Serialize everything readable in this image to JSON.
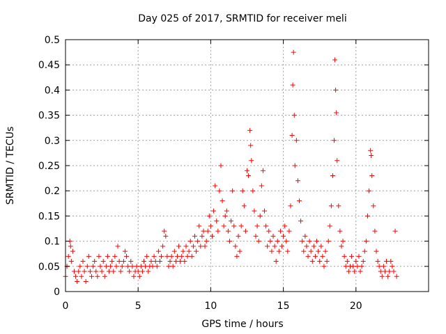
{
  "chart_data": {
    "type": "scatter",
    "title": "Day 025 of 2017, SRMTID for receiver meli",
    "xlabel": "GPS time / hours",
    "ylabel": "SRMTID / TECUs",
    "xlim": [
      0,
      25
    ],
    "ylim": [
      0,
      0.5
    ],
    "xticks": [
      0,
      5,
      10,
      15,
      20
    ],
    "xtick_labels": [
      "0",
      "5",
      "10",
      "15",
      "20"
    ],
    "yticks": [
      0,
      0.05,
      0.1,
      0.15,
      0.2,
      0.25,
      0.3,
      0.35,
      0.4,
      0.45,
      0.5
    ],
    "ytick_labels": [
      "0",
      "0.05",
      "0.1",
      "0.15",
      "0.2",
      "0.25",
      "0.3",
      "0.35",
      "0.4",
      "0.45",
      "0.5"
    ],
    "grid": true,
    "marker": "plus",
    "color": "#ff0000",
    "series": [
      {
        "name": "SRMTID",
        "points": [
          [
            0.0,
            0.03
          ],
          [
            0.1,
            0.05
          ],
          [
            0.2,
            0.07
          ],
          [
            0.3,
            0.1
          ],
          [
            0.35,
            0.09
          ],
          [
            0.4,
            0.06
          ],
          [
            0.5,
            0.08
          ],
          [
            0.6,
            0.04
          ],
          [
            0.7,
            0.03
          ],
          [
            0.8,
            0.02
          ],
          [
            0.9,
            0.04
          ],
          [
            1.0,
            0.05
          ],
          [
            1.1,
            0.03
          ],
          [
            1.2,
            0.06
          ],
          [
            1.3,
            0.04
          ],
          [
            1.4,
            0.02
          ],
          [
            1.5,
            0.05
          ],
          [
            1.6,
            0.07
          ],
          [
            1.7,
            0.04
          ],
          [
            1.8,
            0.03
          ],
          [
            1.9,
            0.05
          ],
          [
            2.0,
            0.06
          ],
          [
            2.1,
            0.04
          ],
          [
            2.2,
            0.03
          ],
          [
            2.3,
            0.07
          ],
          [
            2.4,
            0.05
          ],
          [
            2.5,
            0.04
          ],
          [
            2.6,
            0.06
          ],
          [
            2.7,
            0.03
          ],
          [
            2.8,
            0.05
          ],
          [
            2.9,
            0.07
          ],
          [
            3.0,
            0.04
          ],
          [
            3.1,
            0.05
          ],
          [
            3.2,
            0.06
          ],
          [
            3.3,
            0.04
          ],
          [
            3.4,
            0.07
          ],
          [
            3.5,
            0.05
          ],
          [
            3.6,
            0.09
          ],
          [
            3.7,
            0.06
          ],
          [
            3.8,
            0.04
          ],
          [
            3.9,
            0.05
          ],
          [
            4.0,
            0.06
          ],
          [
            4.1,
            0.08
          ],
          [
            4.2,
            0.07
          ],
          [
            4.3,
            0.05
          ],
          [
            4.4,
            0.04
          ],
          [
            4.5,
            0.06
          ],
          [
            4.6,
            0.05
          ],
          [
            4.7,
            0.03
          ],
          [
            4.8,
            0.04
          ],
          [
            4.9,
            0.05
          ],
          [
            5.0,
            0.04
          ],
          [
            5.1,
            0.03
          ],
          [
            5.2,
            0.05
          ],
          [
            5.3,
            0.04
          ],
          [
            5.4,
            0.06
          ],
          [
            5.5,
            0.05
          ],
          [
            5.6,
            0.07
          ],
          [
            5.7,
            0.04
          ],
          [
            5.8,
            0.05
          ],
          [
            5.9,
            0.06
          ],
          [
            6.0,
            0.05
          ],
          [
            6.1,
            0.07
          ],
          [
            6.2,
            0.06
          ],
          [
            6.3,
            0.05
          ],
          [
            6.4,
            0.08
          ],
          [
            6.5,
            0.06
          ],
          [
            6.6,
            0.07
          ],
          [
            6.7,
            0.09
          ],
          [
            6.8,
            0.12
          ],
          [
            6.9,
            0.11
          ],
          [
            7.0,
            0.07
          ],
          [
            7.1,
            0.05
          ],
          [
            7.2,
            0.06
          ],
          [
            7.3,
            0.07
          ],
          [
            7.4,
            0.05
          ],
          [
            7.5,
            0.08
          ],
          [
            7.6,
            0.06
          ],
          [
            7.7,
            0.07
          ],
          [
            7.8,
            0.09
          ],
          [
            7.9,
            0.06
          ],
          [
            8.0,
            0.07
          ],
          [
            8.1,
            0.08
          ],
          [
            8.2,
            0.06
          ],
          [
            8.3,
            0.09
          ],
          [
            8.4,
            0.07
          ],
          [
            8.5,
            0.08
          ],
          [
            8.6,
            0.1
          ],
          [
            8.7,
            0.07
          ],
          [
            8.8,
            0.09
          ],
          [
            8.9,
            0.11
          ],
          [
            9.0,
            0.08
          ],
          [
            9.1,
            0.1
          ],
          [
            9.2,
            0.13
          ],
          [
            9.3,
            0.09
          ],
          [
            9.4,
            0.11
          ],
          [
            9.5,
            0.12
          ],
          [
            9.6,
            0.09
          ],
          [
            9.7,
            0.1
          ],
          [
            9.8,
            0.12
          ],
          [
            9.9,
            0.15
          ],
          [
            10.0,
            0.13
          ],
          [
            10.1,
            0.11
          ],
          [
            10.2,
            0.16
          ],
          [
            10.3,
            0.21
          ],
          [
            10.4,
            0.14
          ],
          [
            10.5,
            0.12
          ],
          [
            10.6,
            0.2
          ],
          [
            10.7,
            0.25
          ],
          [
            10.8,
            0.18
          ],
          [
            10.9,
            0.13
          ],
          [
            11.0,
            0.15
          ],
          [
            11.1,
            0.16
          ],
          [
            11.2,
            0.12
          ],
          [
            11.3,
            0.1
          ],
          [
            11.4,
            0.14
          ],
          [
            11.5,
            0.2
          ],
          [
            11.6,
            0.13
          ],
          [
            11.7,
            0.09
          ],
          [
            11.8,
            0.07
          ],
          [
            11.9,
            0.11
          ],
          [
            12.0,
            0.08
          ],
          [
            12.1,
            0.13
          ],
          [
            12.2,
            0.2
          ],
          [
            12.3,
            0.17
          ],
          [
            12.4,
            0.12
          ],
          [
            12.5,
            0.24
          ],
          [
            12.6,
            0.23
          ],
          [
            12.7,
            0.32
          ],
          [
            12.75,
            0.29
          ],
          [
            12.8,
            0.26
          ],
          [
            12.9,
            0.2
          ],
          [
            13.0,
            0.16
          ],
          [
            13.1,
            0.11
          ],
          [
            13.2,
            0.13
          ],
          [
            13.3,
            0.1
          ],
          [
            13.4,
            0.15
          ],
          [
            13.5,
            0.21
          ],
          [
            13.6,
            0.24
          ],
          [
            13.7,
            0.16
          ],
          [
            13.8,
            0.13
          ],
          [
            13.9,
            0.09
          ],
          [
            14.0,
            0.12
          ],
          [
            14.1,
            0.1
          ],
          [
            14.2,
            0.08
          ],
          [
            14.3,
            0.11
          ],
          [
            14.4,
            0.09
          ],
          [
            14.5,
            0.06
          ],
          [
            14.6,
            0.1
          ],
          [
            14.7,
            0.08
          ],
          [
            14.8,
            0.12
          ],
          [
            14.9,
            0.09
          ],
          [
            15.0,
            0.11
          ],
          [
            15.1,
            0.13
          ],
          [
            15.2,
            0.1
          ],
          [
            15.3,
            0.08
          ],
          [
            15.4,
            0.12
          ],
          [
            15.5,
            0.17
          ],
          [
            15.6,
            0.31
          ],
          [
            15.65,
            0.41
          ],
          [
            15.7,
            0.475
          ],
          [
            15.75,
            0.35
          ],
          [
            15.8,
            0.25
          ],
          [
            15.9,
            0.3
          ],
          [
            16.0,
            0.22
          ],
          [
            16.1,
            0.18
          ],
          [
            16.2,
            0.14
          ],
          [
            16.3,
            0.1
          ],
          [
            16.4,
            0.08
          ],
          [
            16.5,
            0.11
          ],
          [
            16.6,
            0.09
          ],
          [
            16.7,
            0.07
          ],
          [
            16.8,
            0.1
          ],
          [
            16.9,
            0.08
          ],
          [
            17.0,
            0.06
          ],
          [
            17.1,
            0.09
          ],
          [
            17.2,
            0.07
          ],
          [
            17.3,
            0.1
          ],
          [
            17.4,
            0.08
          ],
          [
            17.5,
            0.06
          ],
          [
            17.6,
            0.09
          ],
          [
            17.7,
            0.07
          ],
          [
            17.8,
            0.05
          ],
          [
            17.9,
            0.08
          ],
          [
            18.0,
            0.06
          ],
          [
            18.1,
            0.1
          ],
          [
            18.2,
            0.13
          ],
          [
            18.3,
            0.17
          ],
          [
            18.4,
            0.23
          ],
          [
            18.5,
            0.3
          ],
          [
            18.55,
            0.46
          ],
          [
            18.6,
            0.4
          ],
          [
            18.65,
            0.355
          ],
          [
            18.7,
            0.26
          ],
          [
            18.8,
            0.17
          ],
          [
            18.9,
            0.12
          ],
          [
            19.0,
            0.09
          ],
          [
            19.1,
            0.1
          ],
          [
            19.2,
            0.07
          ],
          [
            19.3,
            0.05
          ],
          [
            19.4,
            0.06
          ],
          [
            19.5,
            0.04
          ],
          [
            19.6,
            0.05
          ],
          [
            19.7,
            0.07
          ],
          [
            19.8,
            0.05
          ],
          [
            19.9,
            0.04
          ],
          [
            20.0,
            0.06
          ],
          [
            20.1,
            0.05
          ],
          [
            20.2,
            0.07
          ],
          [
            20.3,
            0.04
          ],
          [
            20.4,
            0.05
          ],
          [
            20.5,
            0.06
          ],
          [
            20.6,
            0.08
          ],
          [
            20.7,
            0.1
          ],
          [
            20.8,
            0.15
          ],
          [
            20.9,
            0.2
          ],
          [
            21.0,
            0.28
          ],
          [
            21.05,
            0.27
          ],
          [
            21.1,
            0.23
          ],
          [
            21.2,
            0.17
          ],
          [
            21.3,
            0.12
          ],
          [
            21.4,
            0.08
          ],
          [
            21.5,
            0.06
          ],
          [
            21.6,
            0.05
          ],
          [
            21.7,
            0.04
          ],
          [
            21.8,
            0.03
          ],
          [
            21.9,
            0.05
          ],
          [
            22.0,
            0.04
          ],
          [
            22.1,
            0.06
          ],
          [
            22.2,
            0.03
          ],
          [
            22.3,
            0.04
          ],
          [
            22.4,
            0.06
          ],
          [
            22.5,
            0.05
          ],
          [
            22.6,
            0.04
          ],
          [
            22.7,
            0.12
          ],
          [
            22.8,
            0.03
          ]
        ]
      }
    ]
  }
}
